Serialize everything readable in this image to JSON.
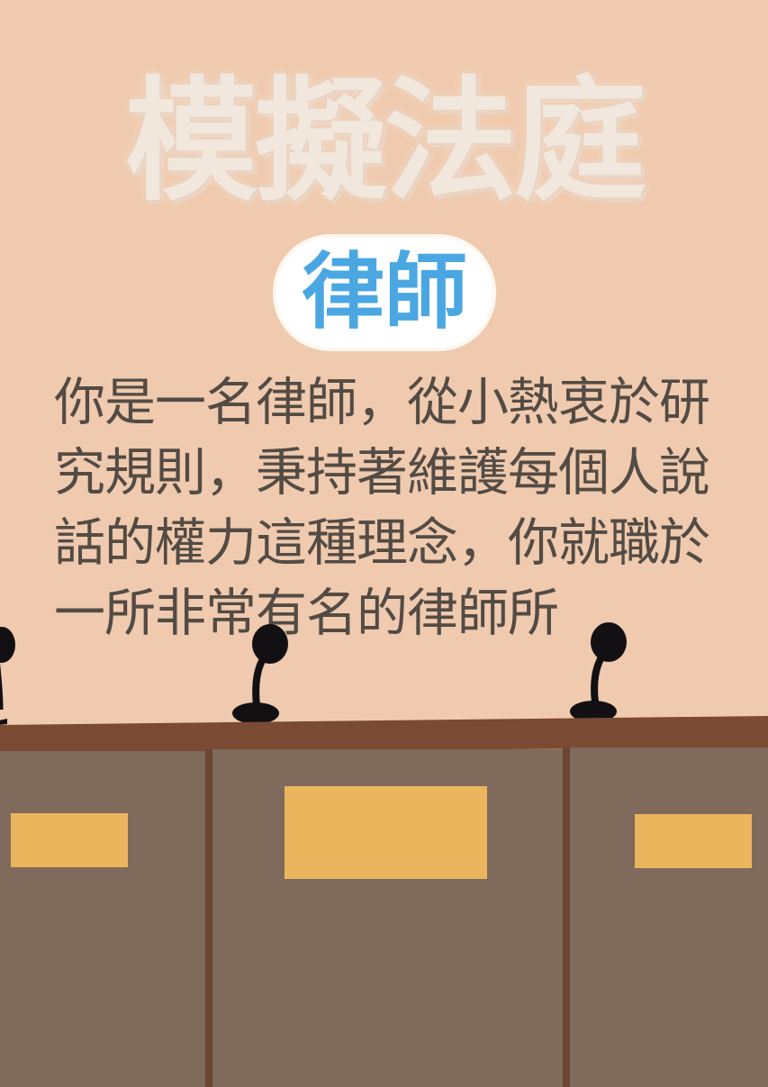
{
  "title": "模擬法庭",
  "role_badge": "律師",
  "description": "你是一名律師，從小熱衷於研究規則，秉持著維護每個人說話的權力這種理念，你就職於一所非常有名的律師所",
  "colors": {
    "background": "#efcaae",
    "title": "#f1e7dc",
    "badge_text": "#4aa7e2",
    "body_text": "#534b44",
    "desk_top": "#7a4a33",
    "desk_panel": "#7f6a5c",
    "nameplate": "#ebb55e",
    "microphone": "#121012"
  },
  "icons": [
    "microphone-icon",
    "microphone-icon",
    "microphone-icon"
  ]
}
